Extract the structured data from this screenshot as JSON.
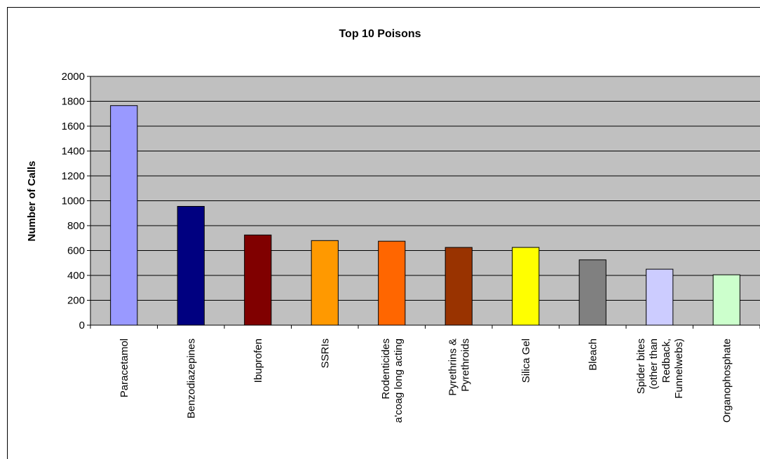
{
  "chart_data": {
    "type": "bar",
    "title": "Top 10 Poisons",
    "xlabel": "",
    "ylabel": "Number of Calls",
    "ylim": [
      0,
      2000
    ],
    "yticks": [
      0,
      200,
      400,
      600,
      800,
      1000,
      1200,
      1400,
      1600,
      1800,
      2000
    ],
    "grid": true,
    "legend": "none",
    "categories": [
      [
        "Paracetamol"
      ],
      [
        "Benzodiazepines"
      ],
      [
        "Ibuprofen"
      ],
      [
        "SSRIs"
      ],
      [
        "Rodenticides",
        "a'coag long acting"
      ],
      [
        "Pyrethrins &",
        "Pyrethroids"
      ],
      [
        "Silica Gel"
      ],
      [
        "Bleach"
      ],
      [
        "Spider bites",
        "(other than",
        "Redback,",
        "Funnelwebs)"
      ],
      [
        "Organophosphate"
      ]
    ],
    "values": [
      1765,
      955,
      725,
      680,
      675,
      625,
      625,
      525,
      450,
      405
    ],
    "colors": [
      "#9999ff",
      "#000080",
      "#800000",
      "#ff9900",
      "#ff6600",
      "#993300",
      "#ffff00",
      "#808080",
      "#ccccff",
      "#ccffcc"
    ],
    "plot_background": "#c0c0c0"
  }
}
